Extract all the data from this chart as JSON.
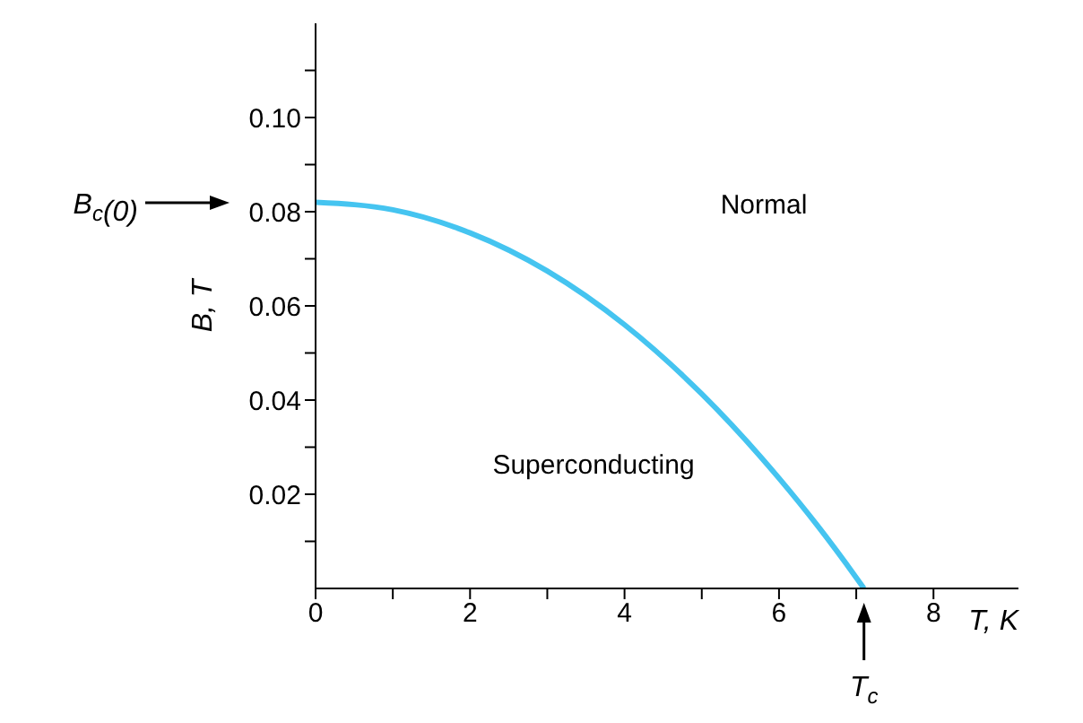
{
  "chart_data": {
    "type": "line",
    "xlabel": "T, K",
    "ylabel": "B, T",
    "x": [
      0,
      1,
      2,
      3,
      4,
      5,
      6,
      6.5,
      7,
      7.1
    ],
    "series": [
      {
        "color": "#45c4f0",
        "values": [
          0.082,
          0.0804,
          0.0755,
          0.0674,
          0.056,
          0.0413,
          0.0234,
          0.0133,
          0.0023,
          0
        ]
      }
    ],
    "xlim": [
      0,
      9.1
    ],
    "ylim": [
      0,
      0.12
    ],
    "xticks": [
      0,
      {
        "value": 1,
        "label": null
      },
      2,
      {
        "value": 3,
        "label": null
      },
      4,
      {
        "value": 5,
        "label": null
      },
      6,
      {
        "value": 7,
        "label": null
      },
      8
    ],
    "yticks": [
      {
        "value": 0.01,
        "label": null
      },
      {
        "value": 0.02,
        "label": "0.02"
      },
      {
        "value": 0.03,
        "label": null
      },
      {
        "value": 0.04,
        "label": "0.04"
      },
      {
        "value": 0.05,
        "label": null
      },
      {
        "value": 0.06,
        "label": "0.06"
      },
      {
        "value": 0.07,
        "label": null
      },
      {
        "value": 0.08,
        "label": "0.08"
      },
      {
        "value": 0.09,
        "label": null
      },
      {
        "value": 0.1,
        "label": "0.10"
      },
      {
        "value": 0.11,
        "label": null
      }
    ],
    "marker": "none",
    "line_style": "solid",
    "grid": false,
    "legend": false,
    "annotations": [
      {
        "text": "T$_{c}$",
        "x": 7.1,
        "y": 0
      },
      "B$_{c}$(0)",
      "Normal",
      "Superconducting"
    ]
  }
}
